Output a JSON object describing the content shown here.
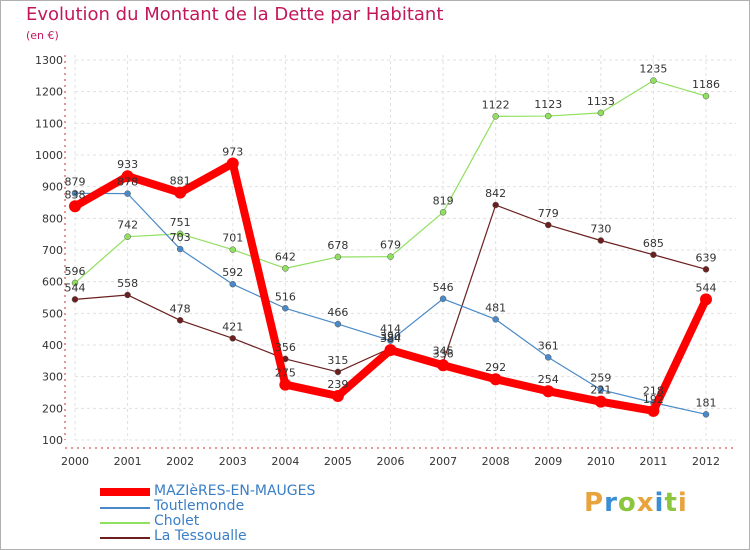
{
  "header": {
    "title": "Evolution du Montant de la Dette par Habitant",
    "subtitle": "(en €)"
  },
  "logo": {
    "letters": [
      "P",
      "r",
      "o",
      "x",
      "i",
      "t",
      "i"
    ],
    "colors": [
      "#e8a33d",
      "#3a8ed6",
      "#8cc63f",
      "#e8a33d",
      "#3a8ed6",
      "#8cc63f",
      "#e8a33d"
    ]
  },
  "chart_data": {
    "type": "line",
    "title": "Evolution du Montant de la Dette par Habitant",
    "subtitle": "(en €)",
    "xlabel": "",
    "ylabel": "",
    "x": [
      "2000",
      "2001",
      "2002",
      "2003",
      "2004",
      "2005",
      "2006",
      "2007",
      "2008",
      "2009",
      "2010",
      "2011",
      "2012"
    ],
    "ylim": [
      100,
      1300
    ],
    "yticks": [
      100,
      200,
      300,
      400,
      500,
      600,
      700,
      800,
      900,
      1000,
      1100,
      1200,
      1300
    ],
    "grid": true,
    "legend_position": "bottom-left",
    "series": [
      {
        "name": "MAZIèRES-EN-MAUGES",
        "color": "#ff0000",
        "width": 8,
        "values": [
          838,
          933,
          881,
          973,
          275,
          239,
          384,
          336,
          292,
          254,
          221,
          192,
          544
        ],
        "labels": [
          "838",
          "933",
          "881",
          "973",
          "275",
          "239",
          "384",
          "336",
          "292",
          "254",
          "221",
          "192",
          "544"
        ]
      },
      {
        "name": "Toutlemonde",
        "color": "#4a8ac8",
        "width": 1.2,
        "values": [
          879,
          878,
          703,
          592,
          516,
          466,
          414,
          546,
          481,
          361,
          259,
          218,
          181
        ],
        "labels": [
          "879",
          "878",
          "703",
          "592",
          "516",
          "466",
          "414",
          "546",
          "481",
          "361",
          "259",
          "218",
          "181"
        ]
      },
      {
        "name": "Cholet",
        "color": "#90e060",
        "width": 1.2,
        "values": [
          596,
          742,
          751,
          701,
          642,
          678,
          679,
          819,
          1122,
          1123,
          1133,
          1235,
          1186
        ],
        "labels": [
          "596",
          "742",
          "751",
          "701",
          "642",
          "678",
          "679",
          "819",
          "1122",
          "1123",
          "1133",
          "1235",
          "1186"
        ]
      },
      {
        "name": "La Tessoualle",
        "color": "#6b1f1f",
        "width": 1.2,
        "values": [
          544,
          558,
          478,
          421,
          356,
          315,
          390,
          345,
          842,
          779,
          730,
          685,
          639
        ],
        "labels": [
          "544",
          "558",
          "478",
          "421",
          "356",
          "315",
          "390",
          "345",
          "842",
          "779",
          "730",
          "685",
          "639"
        ]
      }
    ]
  }
}
